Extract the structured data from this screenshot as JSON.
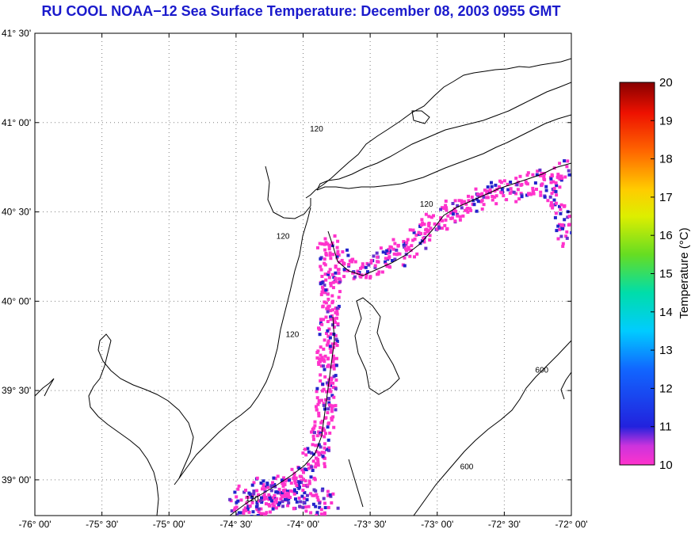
{
  "title": "RU COOL  NOAA−12  Sea Surface Temperature:  December 08, 2003 0955 GMT",
  "colors": {
    "title": "#1a1acc",
    "land_outline": "#000000",
    "grid": "#808080",
    "sst_low": "#ff33cc",
    "sst_mid": "#6633cc",
    "sst_high": "#2222cc"
  },
  "map": {
    "lon_range": [
      -76.0,
      -72.0
    ],
    "lat_range": [
      38.8,
      41.5
    ],
    "lon_ticks": [
      {
        "value": -76.0,
        "label": "-76° 00'"
      },
      {
        "value": -75.5,
        "label": "-75° 30'"
      },
      {
        "value": -75.0,
        "label": "-75° 00'"
      },
      {
        "value": -74.5,
        "label": "-74° 30'"
      },
      {
        "value": -74.0,
        "label": "-74° 00'"
      },
      {
        "value": -73.5,
        "label": "-73° 30'"
      },
      {
        "value": -73.0,
        "label": "-73° 00'"
      },
      {
        "value": -72.5,
        "label": "-72° 30'"
      },
      {
        "value": -72.0,
        "label": "-72° 00'"
      }
    ],
    "lat_ticks": [
      {
        "value": 41.5,
        "label": "41° 30'"
      },
      {
        "value": 41.0,
        "label": "41° 00'"
      },
      {
        "value": 40.5,
        "label": "40° 30'"
      },
      {
        "value": 40.0,
        "label": "40° 00'"
      },
      {
        "value": 39.5,
        "label": "39° 30'"
      },
      {
        "value": 39.0,
        "label": "39° 00'"
      }
    ],
    "grid": true,
    "contour_labels": [
      {
        "text": "120",
        "lon": -73.9,
        "lat": 40.95
      },
      {
        "text": "120",
        "lon": -73.08,
        "lat": 40.53
      },
      {
        "text": "120",
        "lon": -74.15,
        "lat": 40.35
      },
      {
        "text": "120",
        "lon": -74.08,
        "lat": 39.8
      },
      {
        "text": "120",
        "lon": -74.38,
        "lat": 38.88
      },
      {
        "text": "600",
        "lon": -72.22,
        "lat": 39.6
      },
      {
        "text": "600",
        "lon": -72.78,
        "lat": 39.06
      }
    ]
  },
  "colorbar": {
    "label": "Temperature (°C)",
    "min": 10,
    "max": 20,
    "ticks": [
      "10",
      "11",
      "12",
      "13",
      "14",
      "15",
      "16",
      "17",
      "18",
      "19",
      "20"
    ]
  }
}
